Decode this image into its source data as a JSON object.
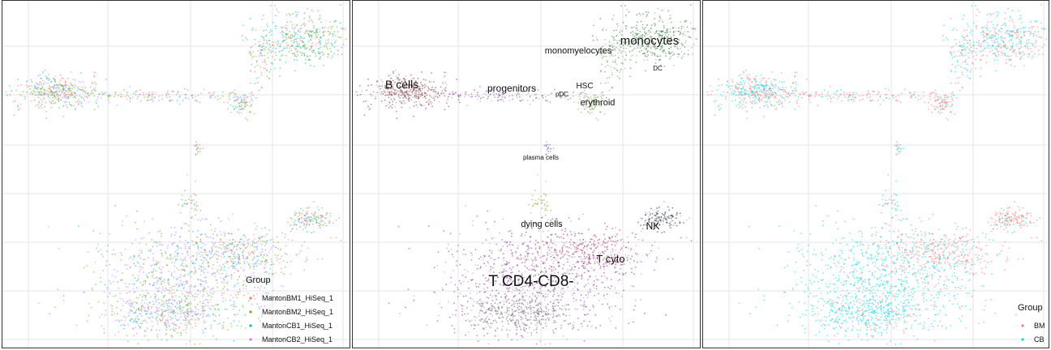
{
  "chart_data": [
    {
      "type": "scatter",
      "panel": "left",
      "legend": {
        "title": "Group",
        "placement": "bottom-right",
        "entries": [
          {
            "name": "MantonBM1_HiSeq_1",
            "color": "#F8766D"
          },
          {
            "name": "MantonBM2_HiSeq_1",
            "color": "#7CAE00"
          },
          {
            "name": "MantonCB1_HiSeq_1",
            "color": "#00BFC4"
          },
          {
            "name": "MantonCB2_HiSeq_1",
            "color": "#C77CFF"
          }
        ]
      },
      "grid": true
    },
    {
      "type": "scatter",
      "panel": "middle",
      "annotations": [
        {
          "text": "monocytes",
          "size": "large"
        },
        {
          "text": "monomyelocytes",
          "size": "medium"
        },
        {
          "text": "DC",
          "size": "small"
        },
        {
          "text": "B cells",
          "size": "large"
        },
        {
          "text": "progenitors",
          "size": "medium"
        },
        {
          "text": "HSC",
          "size": "medium"
        },
        {
          "text": "pDC",
          "size": "small"
        },
        {
          "text": "erythroid",
          "size": "medium"
        },
        {
          "text": "plasma cells",
          "size": "small"
        },
        {
          "text": "dying cells",
          "size": "medium"
        },
        {
          "text": "NK",
          "size": "medium"
        },
        {
          "text": "T cyto",
          "size": "medium"
        },
        {
          "text": "T CD4-CD8-",
          "size": "xlarge"
        }
      ],
      "grid": true
    },
    {
      "type": "scatter",
      "panel": "right",
      "legend": {
        "title": "Group",
        "placement": "bottom-right",
        "entries": [
          {
            "name": "BM",
            "color": "#F8766D"
          },
          {
            "name": "CB",
            "color": "#00DDEE"
          }
        ]
      },
      "grid": true
    }
  ]
}
